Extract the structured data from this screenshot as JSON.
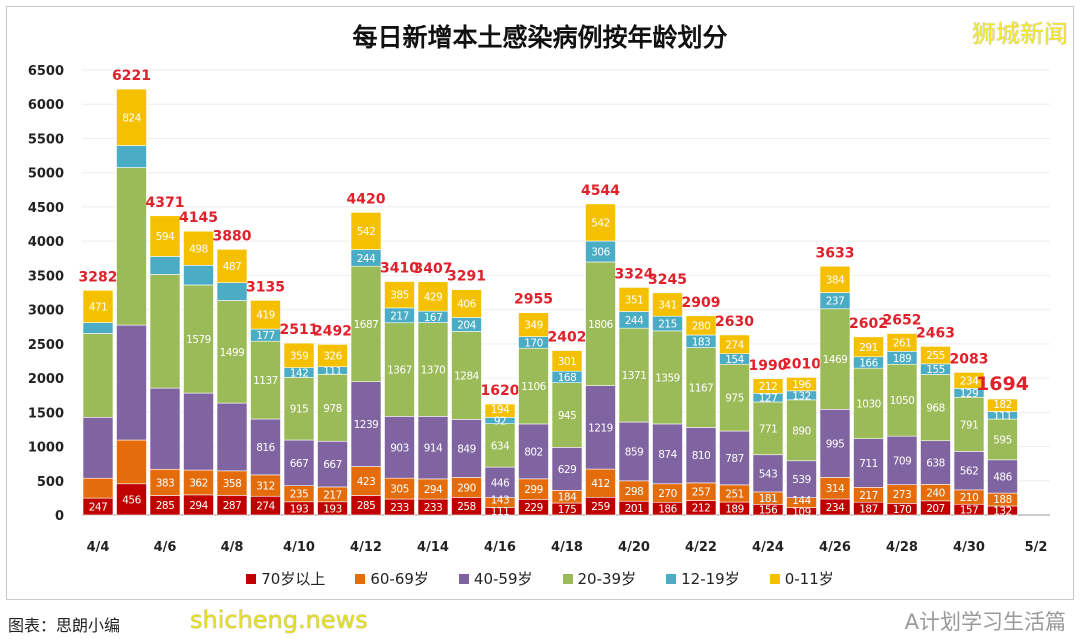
{
  "chart_data": {
    "type": "bar",
    "stacked": true,
    "title": "每日新增本土感染病例按年龄划分",
    "xlabel": "",
    "ylabel": "",
    "ylim": [
      0,
      6500
    ],
    "yticks": [
      0,
      500,
      1000,
      1500,
      2000,
      2500,
      3000,
      3500,
      4000,
      4500,
      5000,
      5500,
      6000,
      6500
    ],
    "grid": true,
    "legend_position": "bottom",
    "categories": [
      "4/4",
      "4/5",
      "4/6",
      "4/7",
      "4/8",
      "4/9",
      "4/10",
      "4/11",
      "4/12",
      "4/13",
      "4/14",
      "4/15",
      "4/16",
      "4/17",
      "4/18",
      "4/19",
      "4/20",
      "4/21",
      "4/22",
      "4/23",
      "4/24",
      "4/25",
      "4/26",
      "4/27",
      "4/28",
      "4/29",
      "4/30",
      "5/1",
      "5/2"
    ],
    "xtick_labels": [
      "4/4",
      "",
      "4/6",
      "",
      "4/8",
      "",
      "4/10",
      "",
      "4/12",
      "",
      "4/14",
      "",
      "4/16",
      "",
      "4/18",
      "",
      "4/20",
      "",
      "4/22",
      "",
      "4/24",
      "",
      "4/26",
      "",
      "4/28",
      "",
      "4/30",
      "",
      "5/2"
    ],
    "totals": [
      3282,
      6221,
      4371,
      4145,
      3880,
      3135,
      2511,
      2492,
      4420,
      3410,
      3407,
      3291,
      1620,
      2955,
      2402,
      4544,
      3324,
      3245,
      2909,
      2630,
      1990,
      2010,
      3633,
      2602,
      2652,
      2463,
      2083,
      1694,
      null
    ],
    "series": [
      {
        "name": "70岁以上",
        "color": "#c00000",
        "values": [
          247,
          456,
          285,
          294,
          287,
          274,
          193,
          193,
          285,
          233,
          233,
          258,
          111,
          229,
          175,
          259,
          201,
          186,
          212,
          189,
          156,
          109,
          234,
          187,
          170,
          207,
          157,
          132,
          null
        ],
        "labeled": [
          1,
          1,
          1,
          1,
          1,
          1,
          1,
          1,
          1,
          1,
          1,
          1,
          1,
          1,
          1,
          1,
          1,
          1,
          1,
          1,
          1,
          1,
          1,
          1,
          1,
          1,
          1,
          1,
          0
        ]
      },
      {
        "name": "60-69岁",
        "color": "#e46c0a",
        "values": [
          290,
          639,
          383,
          362,
          358,
          312,
          235,
          217,
          423,
          305,
          294,
          290,
          143,
          299,
          184,
          412,
          298,
          270,
          257,
          251,
          181,
          144,
          314,
          217,
          273,
          240,
          210,
          188,
          null
        ],
        "labeled": [
          0,
          0,
          1,
          1,
          1,
          1,
          1,
          1,
          1,
          1,
          1,
          1,
          1,
          1,
          1,
          1,
          1,
          1,
          1,
          1,
          1,
          1,
          1,
          1,
          1,
          1,
          1,
          1,
          0
        ]
      },
      {
        "name": "40-59岁",
        "color": "#8064a2",
        "values": [
          890,
          1679,
          1186,
          1125,
          990,
          816,
          667,
          667,
          1239,
          903,
          914,
          849,
          446,
          802,
          629,
          1219,
          859,
          874,
          810,
          787,
          543,
          539,
          995,
          711,
          709,
          638,
          562,
          486,
          null
        ],
        "labeled": [
          0,
          0,
          0,
          0,
          0,
          1,
          1,
          1,
          1,
          1,
          1,
          1,
          1,
          1,
          1,
          1,
          1,
          1,
          1,
          1,
          1,
          1,
          1,
          1,
          1,
          1,
          1,
          1,
          0
        ]
      },
      {
        "name": "20-39岁",
        "color": "#9bbb59",
        "values": [
          1225,
          2301,
          1661,
          1579,
          1499,
          1137,
          915,
          978,
          1687,
          1367,
          1370,
          1284,
          634,
          1106,
          945,
          1806,
          1371,
          1359,
          1167,
          975,
          771,
          890,
          1469,
          1030,
          1050,
          968,
          791,
          595,
          null
        ],
        "labeled": [
          0,
          0,
          0,
          1,
          1,
          1,
          1,
          1,
          1,
          1,
          1,
          1,
          1,
          1,
          1,
          1,
          1,
          1,
          1,
          1,
          1,
          1,
          1,
          1,
          1,
          1,
          1,
          1,
          0
        ]
      },
      {
        "name": "12-19岁",
        "color": "#4bacc6",
        "values": [
          159,
          322,
          262,
          287,
          259,
          177,
          142,
          111,
          244,
          217,
          167,
          204,
          92,
          170,
          168,
          306,
          244,
          215,
          183,
          154,
          127,
          132,
          237,
          166,
          189,
          155,
          129,
          111,
          null
        ],
        "labeled": [
          0,
          0,
          0,
          0,
          0,
          1,
          1,
          1,
          1,
          1,
          1,
          1,
          1,
          1,
          1,
          1,
          1,
          1,
          1,
          1,
          1,
          1,
          1,
          1,
          1,
          1,
          1,
          1,
          0
        ]
      },
      {
        "name": "0-11岁",
        "color": "#f5c000",
        "values": [
          471,
          824,
          594,
          498,
          487,
          419,
          359,
          326,
          542,
          385,
          429,
          406,
          194,
          349,
          301,
          542,
          351,
          341,
          280,
          274,
          212,
          196,
          384,
          291,
          261,
          255,
          234,
          182,
          null
        ],
        "labeled": [
          1,
          1,
          1,
          1,
          1,
          1,
          1,
          1,
          1,
          1,
          1,
          1,
          1,
          1,
          1,
          1,
          1,
          1,
          1,
          1,
          1,
          1,
          1,
          1,
          1,
          1,
          1,
          1,
          0
        ]
      }
    ]
  },
  "watermarks": {
    "top_right": "狮城新闻",
    "bottom_left": "shicheng.news",
    "bottom_right": "A计划学习生活篇"
  },
  "source": "图表：思朗小编"
}
